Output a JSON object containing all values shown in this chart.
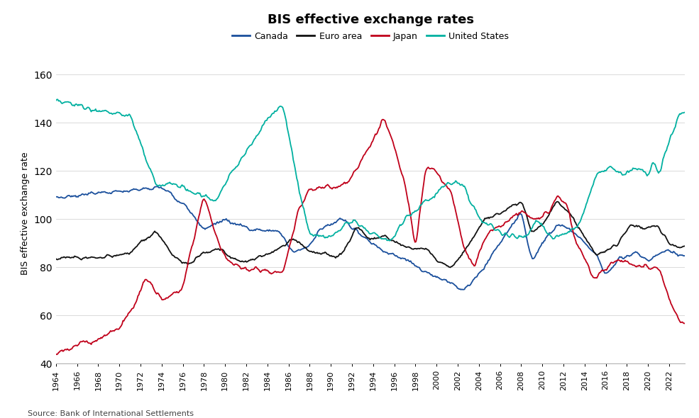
{
  "title": "BIS effective exchange rates",
  "ylabel": "BIS effective exchange rate",
  "source": "Source: Bank of International Settlements",
  "colors": {
    "Canada": "#1a4f9c",
    "Euro area": "#111111",
    "Japan": "#c0001a",
    "United States": "#00b0a0"
  },
  "ylim": [
    40,
    165
  ],
  "yticks": [
    40,
    60,
    80,
    100,
    120,
    140,
    160
  ],
  "xlim": [
    1964,
    2023.5
  ],
  "xtick_start": 1964,
  "xtick_end": 2023,
  "xtick_step": 2,
  "background": "#ffffff",
  "line_width": 1.3
}
